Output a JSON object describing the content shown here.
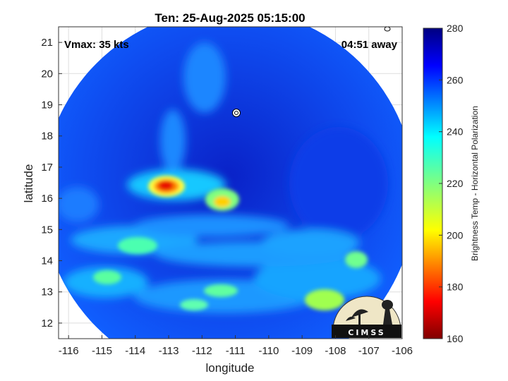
{
  "chart_data": {
    "type": "heatmap",
    "title": "Ten: 25-Aug-2025 05:15:00",
    "xlabel": "longitude",
    "ylabel": "latitude",
    "xlim": [
      -116.3,
      -106
    ],
    "ylim": [
      11.5,
      21.5
    ],
    "xticks": [
      "-116",
      "-115",
      "-114",
      "-113",
      "-112",
      "-111",
      "-110",
      "-109",
      "-108",
      "-107",
      "-106"
    ],
    "yticks": [
      "21",
      "20",
      "19",
      "18",
      "17",
      "16",
      "15",
      "14",
      "13",
      "12"
    ],
    "grid": true,
    "swath_center": {
      "lon": -111.2,
      "lat": 16.1
    },
    "swath_radius_deg": 5.6,
    "colorbar": {
      "label": "Brightness Temp - Horizontal Polarization",
      "range": [
        160,
        280
      ],
      "ticks": [
        "280",
        "260",
        "240",
        "220",
        "200",
        "180",
        "160"
      ],
      "colormap": "jet"
    },
    "features": [
      {
        "name": "warm-spot-1",
        "lon": -113.1,
        "lat": 16.45,
        "value": 185
      },
      {
        "name": "warm-spot-2",
        "lon": -111.3,
        "lat": 15.95,
        "value": 210
      },
      {
        "name": "band-1",
        "lon": -114.0,
        "lat": 14.5,
        "value": 225
      },
      {
        "name": "band-2",
        "lon": -115.0,
        "lat": 13.5,
        "value": 230
      },
      {
        "name": "band-3",
        "lon": -108.0,
        "lat": 12.8,
        "value": 215
      },
      {
        "name": "band-4",
        "lon": -111.8,
        "lat": 12.9,
        "value": 225
      }
    ],
    "storm_marker": {
      "lon": -111.0,
      "lat": 18.8
    }
  },
  "annotations": {
    "vmax": "Vmax: 35 kts",
    "away": "04:51 away"
  },
  "logo": {
    "text": "CIMSS"
  }
}
